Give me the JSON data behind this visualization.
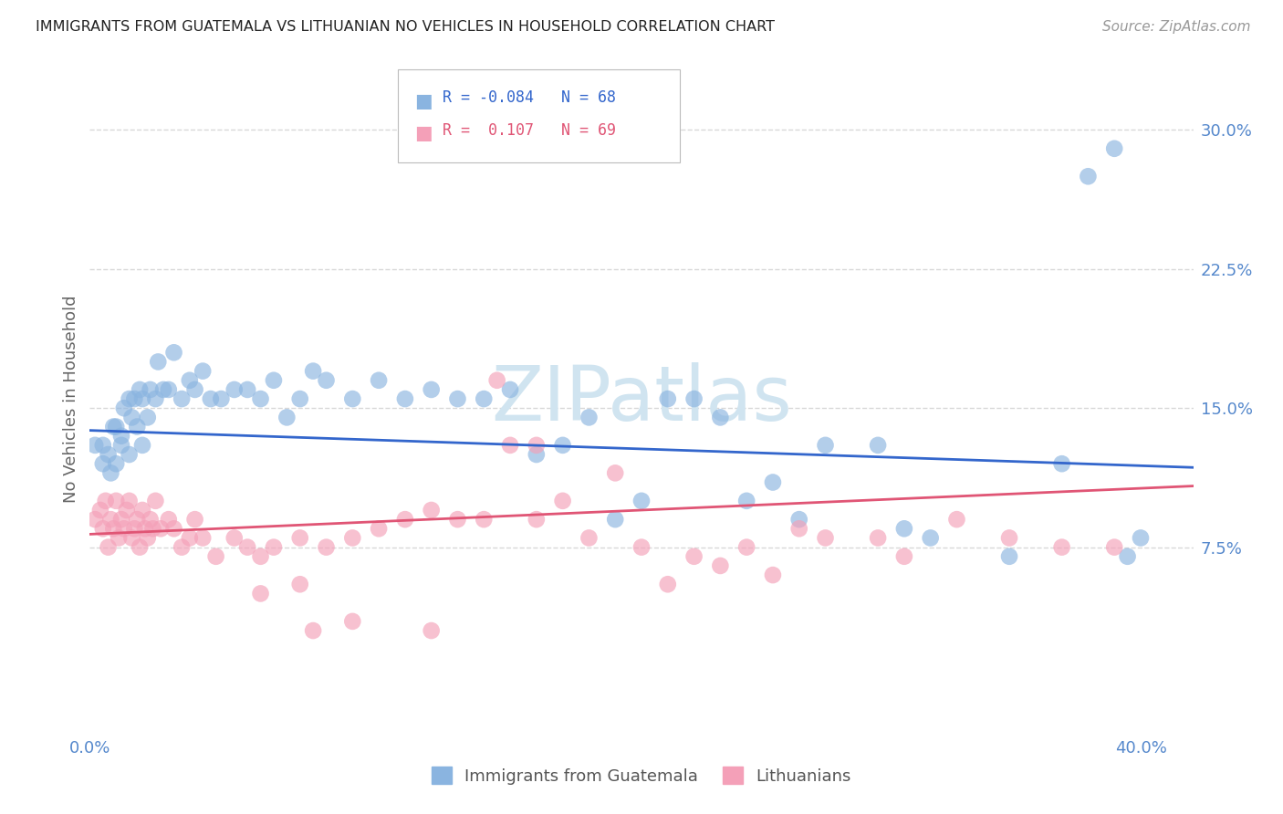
{
  "title": "IMMIGRANTS FROM GUATEMALA VS LITHUANIAN NO VEHICLES IN HOUSEHOLD CORRELATION CHART",
  "source": "Source: ZipAtlas.com",
  "ylabel": "No Vehicles in Household",
  "ytick_labels": [
    "7.5%",
    "15.0%",
    "22.5%",
    "30.0%"
  ],
  "ytick_values": [
    0.075,
    0.15,
    0.225,
    0.3
  ],
  "xlim": [
    0.0,
    0.42
  ],
  "ylim": [
    -0.025,
    0.335
  ],
  "xtick_positions": [
    0.0,
    0.4
  ],
  "xtick_labels": [
    "0.0%",
    "40.0%"
  ],
  "legend_r1": "R = -0.084",
  "legend_n1": "N = 68",
  "legend_r2": "R =  0.107",
  "legend_n2": "N = 69",
  "series1_name": "Immigrants from Guatemala",
  "series2_name": "Lithuanians",
  "series1_color": "#8ab4e0",
  "series2_color": "#f4a0b8",
  "trendline1_color": "#3366cc",
  "trendline2_color": "#e05575",
  "watermark": "ZIPatlas",
  "watermark_color": "#d0e4f0",
  "background_color": "#ffffff",
  "grid_color": "#d8d8d8",
  "axis_color": "#5588cc",
  "title_color": "#222222",
  "source_color": "#999999",
  "legend_text_color1": "#3366cc",
  "legend_text_color2": "#e05575",
  "series1_x": [
    0.002,
    0.005,
    0.005,
    0.007,
    0.008,
    0.009,
    0.01,
    0.01,
    0.012,
    0.012,
    0.013,
    0.015,
    0.015,
    0.016,
    0.017,
    0.018,
    0.019,
    0.02,
    0.02,
    0.022,
    0.023,
    0.025,
    0.026,
    0.028,
    0.03,
    0.032,
    0.035,
    0.038,
    0.04,
    0.043,
    0.046,
    0.05,
    0.055,
    0.06,
    0.065,
    0.07,
    0.075,
    0.08,
    0.085,
    0.09,
    0.1,
    0.11,
    0.12,
    0.13,
    0.14,
    0.15,
    0.16,
    0.17,
    0.18,
    0.19,
    0.2,
    0.21,
    0.22,
    0.23,
    0.24,
    0.25,
    0.26,
    0.27,
    0.28,
    0.3,
    0.31,
    0.32,
    0.35,
    0.37,
    0.38,
    0.39,
    0.395,
    0.4
  ],
  "series1_y": [
    0.13,
    0.12,
    0.13,
    0.125,
    0.115,
    0.14,
    0.12,
    0.14,
    0.13,
    0.135,
    0.15,
    0.125,
    0.155,
    0.145,
    0.155,
    0.14,
    0.16,
    0.13,
    0.155,
    0.145,
    0.16,
    0.155,
    0.175,
    0.16,
    0.16,
    0.18,
    0.155,
    0.165,
    0.16,
    0.17,
    0.155,
    0.155,
    0.16,
    0.16,
    0.155,
    0.165,
    0.145,
    0.155,
    0.17,
    0.165,
    0.155,
    0.165,
    0.155,
    0.16,
    0.155,
    0.155,
    0.16,
    0.125,
    0.13,
    0.145,
    0.09,
    0.1,
    0.155,
    0.155,
    0.145,
    0.1,
    0.11,
    0.09,
    0.13,
    0.13,
    0.085,
    0.08,
    0.07,
    0.12,
    0.275,
    0.29,
    0.07,
    0.08
  ],
  "series2_x": [
    0.002,
    0.004,
    0.005,
    0.006,
    0.007,
    0.008,
    0.009,
    0.01,
    0.011,
    0.012,
    0.013,
    0.014,
    0.015,
    0.016,
    0.017,
    0.018,
    0.019,
    0.02,
    0.021,
    0.022,
    0.023,
    0.024,
    0.025,
    0.027,
    0.03,
    0.032,
    0.035,
    0.038,
    0.04,
    0.043,
    0.048,
    0.055,
    0.06,
    0.065,
    0.07,
    0.08,
    0.09,
    0.1,
    0.11,
    0.12,
    0.13,
    0.14,
    0.15,
    0.16,
    0.17,
    0.18,
    0.19,
    0.2,
    0.21,
    0.22,
    0.23,
    0.24,
    0.25,
    0.26,
    0.27,
    0.28,
    0.3,
    0.31,
    0.33,
    0.35,
    0.37,
    0.39,
    0.065,
    0.08,
    0.085,
    0.1,
    0.13,
    0.155,
    0.17
  ],
  "series2_y": [
    0.09,
    0.095,
    0.085,
    0.1,
    0.075,
    0.09,
    0.085,
    0.1,
    0.08,
    0.09,
    0.085,
    0.095,
    0.1,
    0.08,
    0.085,
    0.09,
    0.075,
    0.095,
    0.085,
    0.08,
    0.09,
    0.085,
    0.1,
    0.085,
    0.09,
    0.085,
    0.075,
    0.08,
    0.09,
    0.08,
    0.07,
    0.08,
    0.075,
    0.07,
    0.075,
    0.08,
    0.075,
    0.08,
    0.085,
    0.09,
    0.095,
    0.09,
    0.09,
    0.13,
    0.09,
    0.1,
    0.08,
    0.115,
    0.075,
    0.055,
    0.07,
    0.065,
    0.075,
    0.06,
    0.085,
    0.08,
    0.08,
    0.07,
    0.09,
    0.08,
    0.075,
    0.075,
    0.05,
    0.055,
    0.03,
    0.035,
    0.03,
    0.165,
    0.13
  ],
  "trendline1_x0": 0.0,
  "trendline1_x1": 0.42,
  "trendline1_y0": 0.138,
  "trendline1_y1": 0.118,
  "trendline2_x0": 0.0,
  "trendline2_x1": 0.42,
  "trendline2_y0": 0.082,
  "trendline2_y1": 0.108
}
